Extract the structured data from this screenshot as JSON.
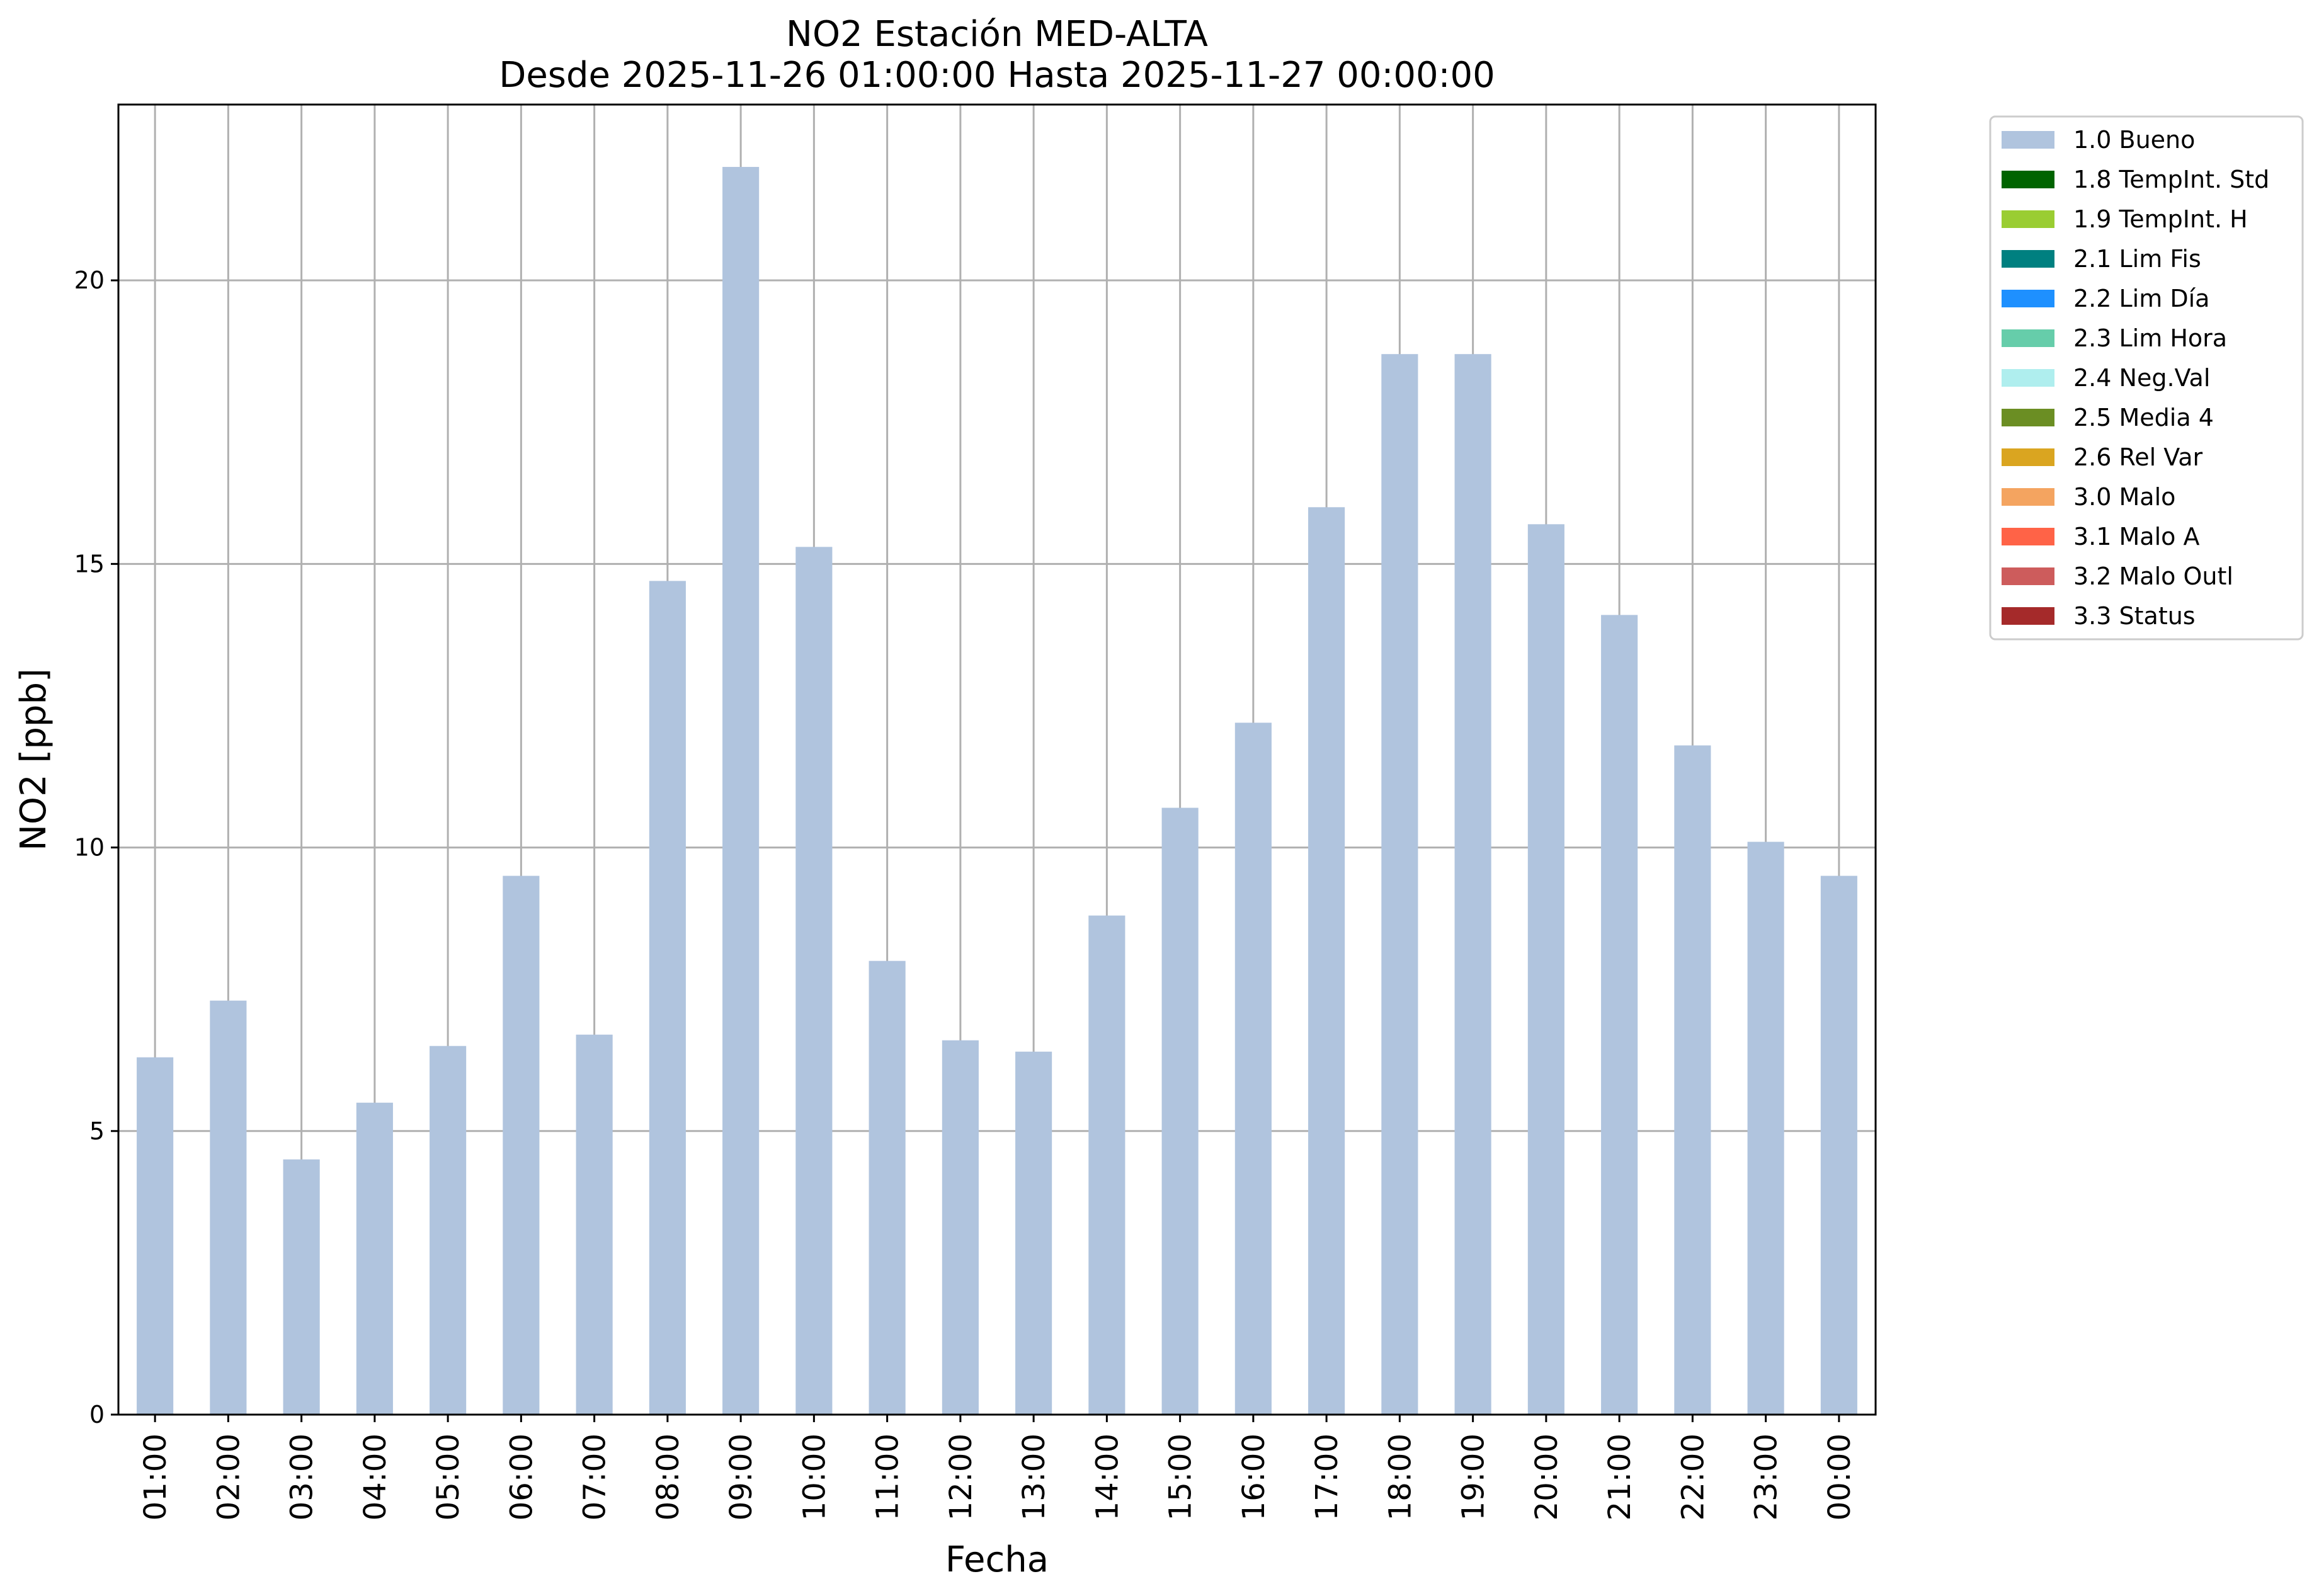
{
  "chart_data": {
    "type": "bar",
    "title": "NO2 Estación MED-ALTA",
    "subtitle": "Desde 2025-11-26 01:00:00 Hasta 2025-11-27 00:00:00",
    "xlabel": "Fecha",
    "ylabel": "NO2 [ppb]",
    "ylim": [
      0,
      23.1
    ],
    "yticks": [
      "0",
      "5",
      "10",
      "15",
      "20"
    ],
    "grid": true,
    "legend_position": "outside-top-right",
    "categories": [
      "01:00",
      "02:00",
      "03:00",
      "04:00",
      "05:00",
      "06:00",
      "07:00",
      "08:00",
      "09:00",
      "10:00",
      "11:00",
      "12:00",
      "13:00",
      "14:00",
      "15:00",
      "16:00",
      "17:00",
      "18:00",
      "19:00",
      "20:00",
      "21:00",
      "22:00",
      "23:00",
      "00:00"
    ],
    "series": [
      {
        "name": "1.0 Bueno",
        "color": "#b0c4de",
        "values": [
          6.3,
          7.3,
          4.5,
          5.5,
          6.5,
          9.5,
          6.7,
          14.7,
          22.0,
          15.3,
          8.0,
          6.6,
          6.4,
          8.8,
          10.7,
          12.2,
          16.0,
          18.7,
          18.7,
          15.7,
          14.1,
          11.8,
          10.1,
          9.5
        ]
      }
    ],
    "legend": [
      {
        "label": "1.0 Bueno",
        "color": "#b0c4de"
      },
      {
        "label": "1.8 TempInt. Std",
        "color": "#006400"
      },
      {
        "label": "1.9 TempInt. H",
        "color": "#9acd32"
      },
      {
        "label": "2.1 Lim Fis",
        "color": "#008080"
      },
      {
        "label": "2.2 Lim Día",
        "color": "#1e90ff"
      },
      {
        "label": "2.3 Lim Hora",
        "color": "#66cdaa"
      },
      {
        "label": "2.4 Neg.Val",
        "color": "#afeeee"
      },
      {
        "label": "2.5 Media 4",
        "color": "#6b8e23"
      },
      {
        "label": "2.6 Rel Var",
        "color": "#daa520"
      },
      {
        "label": "3.0 Malo",
        "color": "#f4a460"
      },
      {
        "label": "3.1 Malo A",
        "color": "#ff6347"
      },
      {
        "label": "3.2 Malo Outl",
        "color": "#cd5c5c"
      },
      {
        "label": "3.3 Status",
        "color": "#a52a2a"
      }
    ]
  }
}
